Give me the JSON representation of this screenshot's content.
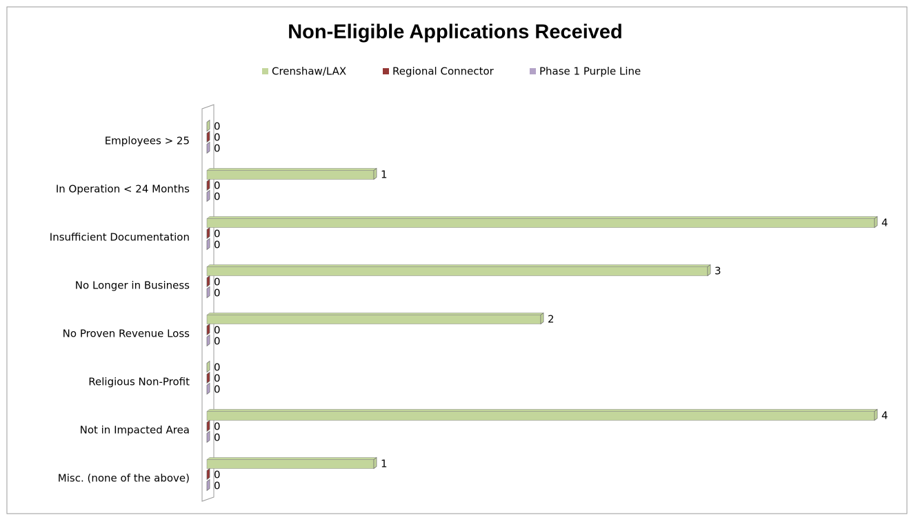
{
  "chart_data": {
    "type": "bar",
    "orientation": "horizontal",
    "title": "Non-Eligible Applications Received",
    "categories": [
      "Employees > 25",
      "In Operation < 24 Months",
      "Insufficient Documentation",
      "No Longer in Business",
      "No Proven Revenue Loss",
      "Religious Non-Profit",
      "Not in Impacted Area",
      "Misc. (none of the above)"
    ],
    "series": [
      {
        "name": "Crenshaw/LAX",
        "color": "#c3d69b",
        "values": [
          0,
          1,
          4,
          3,
          2,
          0,
          4,
          1
        ]
      },
      {
        "name": "Regional Connector",
        "color": "#953735",
        "values": [
          0,
          0,
          0,
          0,
          0,
          0,
          0,
          0
        ]
      },
      {
        "name": "Phase 1 Purple Line",
        "color": "#b3a2c7",
        "values": [
          0,
          0,
          0,
          0,
          0,
          0,
          0,
          0
        ]
      }
    ],
    "xlim": [
      0,
      4
    ],
    "legend": "top"
  }
}
